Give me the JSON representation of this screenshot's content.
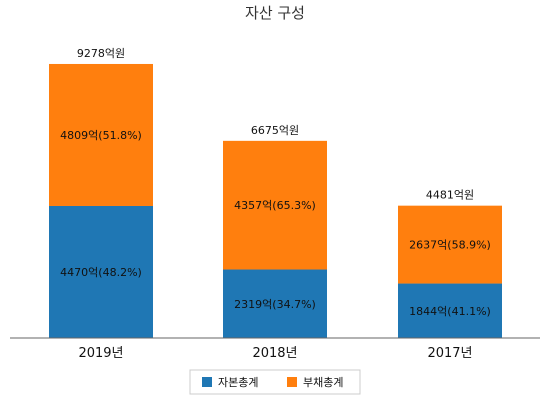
{
  "chart_data": {
    "type": "bar",
    "stacked": true,
    "title": "자산 구성",
    "categories": [
      "2019년",
      "2018년",
      "2017년"
    ],
    "totals": [
      "9278억원",
      "6675억원",
      "4481억원"
    ],
    "total_values": [
      9278,
      6675,
      4481
    ],
    "series": [
      {
        "name": "자본총계",
        "color": "#1f77b4",
        "values": [
          4470,
          2319,
          1844
        ],
        "labels": [
          "4470억(48.2%)",
          "2319억(34.7%)",
          "1844억(41.1%)"
        ]
      },
      {
        "name": "부채총계",
        "color": "#ff7f0e",
        "values": [
          4809,
          4357,
          2637
        ],
        "labels": [
          "4809억(51.8%)",
          "4357억(65.3%)",
          "2637억(58.9%)"
        ]
      }
    ],
    "ylim": [
      0,
      10000
    ],
    "grid": false,
    "legend": "bottom"
  }
}
